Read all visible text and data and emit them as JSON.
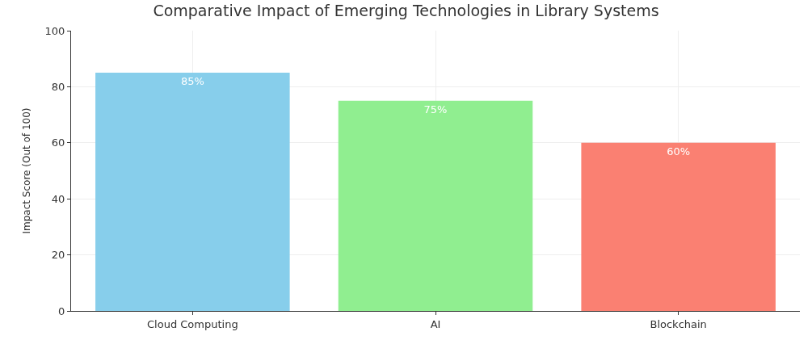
{
  "chart_data": {
    "type": "bar",
    "title": "Comparative Impact of Emerging Technologies in Library Systems",
    "ylabel": "Impact Score (Out of 100)",
    "categories": [
      "Cloud Computing",
      "AI",
      "Blockchain"
    ],
    "values": [
      85,
      75,
      60
    ],
    "colors": [
      "#87ceeb",
      "#90ee90",
      "#fa8072"
    ],
    "value_labels": [
      "85%",
      "75%",
      "60%"
    ],
    "ylim": [
      0,
      100
    ],
    "yticks": [
      0,
      20,
      40,
      60,
      80,
      100
    ],
    "grid": true
  }
}
